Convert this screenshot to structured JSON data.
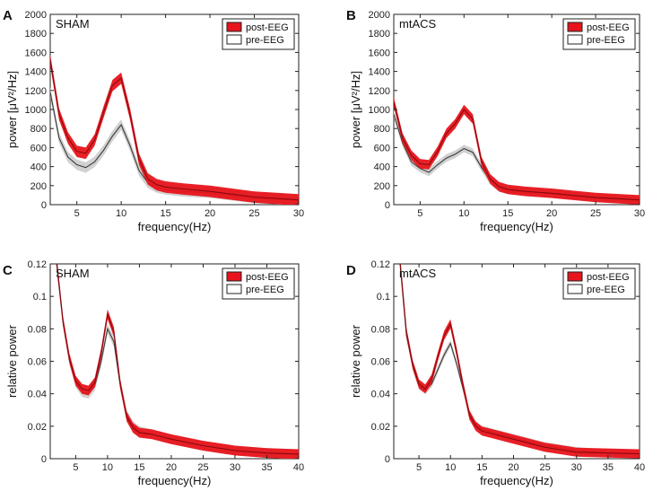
{
  "chart_data": [
    {
      "type": "line",
      "panel_label": "A",
      "title": "SHAM",
      "xlabel": "frequency(Hz)",
      "ylabel": "power [μV²/Hz]",
      "xlim": [
        2,
        30
      ],
      "ylim": [
        0,
        2000
      ],
      "xticks": [
        "5",
        "10",
        "15",
        "20",
        "25",
        "30"
      ],
      "xtick_values": [
        5,
        10,
        15,
        20,
        25,
        30
      ],
      "yticks": [
        "0",
        "200",
        "400",
        "600",
        "800",
        "1000",
        "1200",
        "1400",
        "1600",
        "1800",
        "2000"
      ],
      "ytick_values": [
        0,
        200,
        400,
        600,
        800,
        1000,
        1200,
        1400,
        1600,
        1800,
        2000
      ],
      "legend_position": "top-right",
      "series": [
        {
          "name": "post-EEG",
          "color": "#e8141b",
          "x": [
            2,
            3,
            4,
            5,
            6,
            7,
            8,
            9,
            10,
            11,
            12,
            13,
            14,
            15,
            17,
            20,
            25,
            30
          ],
          "values": [
            1520,
            950,
            700,
            560,
            540,
            680,
            970,
            1250,
            1330,
            950,
            480,
            270,
            210,
            185,
            165,
            140,
            80,
            50
          ],
          "band": 60
        },
        {
          "name": "pre-EEG",
          "color": "#b0b0b0",
          "x": [
            2,
            3,
            4,
            5,
            6,
            7,
            8,
            9,
            10,
            11,
            12,
            13,
            14,
            15,
            17,
            20,
            25,
            30
          ],
          "values": [
            1180,
            700,
            500,
            420,
            390,
            450,
            570,
            720,
            840,
            620,
            360,
            230,
            180,
            160,
            140,
            125,
            70,
            45
          ],
          "band": 55
        }
      ]
    },
    {
      "type": "line",
      "panel_label": "B",
      "title": "mtACS",
      "xlabel": "frequency(Hz)",
      "ylabel": "power [μV²/Hz]",
      "xlim": [
        2,
        30
      ],
      "ylim": [
        0,
        2000
      ],
      "xticks": [
        "5",
        "10",
        "15",
        "20",
        "25",
        "30"
      ],
      "xtick_values": [
        5,
        10,
        15,
        20,
        25,
        30
      ],
      "yticks": [
        "0",
        "200",
        "400",
        "600",
        "800",
        "1000",
        "1200",
        "1400",
        "1600",
        "1800",
        "2000"
      ],
      "ytick_values": [
        0,
        200,
        400,
        600,
        800,
        1000,
        1200,
        1400,
        1600,
        1800,
        2000
      ],
      "legend_position": "top-right",
      "series": [
        {
          "name": "post-EEG",
          "color": "#e8141b",
          "x": [
            2,
            3,
            4,
            5,
            6,
            7,
            8,
            9,
            10,
            11,
            12,
            13,
            14,
            15,
            17,
            20,
            25,
            30
          ],
          "values": [
            1080,
            700,
            520,
            430,
            420,
            560,
            750,
            850,
            1000,
            900,
            450,
            270,
            190,
            160,
            140,
            120,
            75,
            50
          ],
          "band": 50
        },
        {
          "name": "pre-EEG",
          "color": "#b0b0b0",
          "x": [
            2,
            3,
            4,
            5,
            6,
            7,
            8,
            9,
            10,
            11,
            12,
            13,
            14,
            15,
            17,
            20,
            25,
            30
          ],
          "values": [
            950,
            650,
            450,
            380,
            340,
            420,
            490,
            530,
            590,
            550,
            390,
            250,
            175,
            150,
            130,
            115,
            70,
            45
          ],
          "band": 40
        }
      ]
    },
    {
      "type": "line",
      "panel_label": "C",
      "title": "SHAM",
      "xlabel": "frequency(Hz)",
      "ylabel": "relative power",
      "xlim": [
        1,
        40
      ],
      "ylim": [
        0,
        0.12
      ],
      "xticks": [
        "5",
        "10",
        "15",
        "20",
        "25",
        "30",
        "35",
        "40"
      ],
      "xtick_values": [
        5,
        10,
        15,
        20,
        25,
        30,
        35,
        40
      ],
      "yticks": [
        "0",
        "0.02",
        "0.04",
        "0.06",
        "0.08",
        "0.1",
        "0.12"
      ],
      "ytick_values": [
        0,
        0.02,
        0.04,
        0.06,
        0.08,
        0.1,
        0.12
      ],
      "legend_position": "top-right",
      "series": [
        {
          "name": "post-EEG",
          "color": "#e8141b",
          "x": [
            2,
            3,
            4,
            5,
            6,
            7,
            8,
            9,
            10,
            11,
            12,
            13,
            14,
            15,
            17,
            20,
            25,
            30,
            35,
            40
          ],
          "values": [
            0.122,
            0.085,
            0.062,
            0.048,
            0.043,
            0.042,
            0.047,
            0.065,
            0.089,
            0.078,
            0.046,
            0.026,
            0.019,
            0.016,
            0.015,
            0.012,
            0.008,
            0.005,
            0.0035,
            0.0028
          ],
          "band": 0.003
        },
        {
          "name": "pre-EEG",
          "color": "#b0b0b0",
          "x": [
            2,
            3,
            4,
            5,
            6,
            7,
            8,
            9,
            10,
            11,
            12,
            13,
            14,
            15,
            17,
            20,
            25,
            30,
            35,
            40
          ],
          "values": [
            0.12,
            0.084,
            0.061,
            0.047,
            0.041,
            0.04,
            0.045,
            0.06,
            0.08,
            0.072,
            0.045,
            0.027,
            0.02,
            0.017,
            0.015,
            0.012,
            0.008,
            0.005,
            0.0035,
            0.0028
          ],
          "band": 0.003
        }
      ]
    },
    {
      "type": "line",
      "panel_label": "D",
      "title": "mtACS",
      "xlabel": "frequency(Hz)",
      "ylabel": "relative power",
      "xlim": [
        1,
        40
      ],
      "ylim": [
        0,
        0.12
      ],
      "xticks": [
        "5",
        "10",
        "15",
        "20",
        "25",
        "30",
        "35",
        "40"
      ],
      "xtick_values": [
        5,
        10,
        15,
        20,
        25,
        30,
        35,
        40
      ],
      "yticks": [
        "0",
        "0.02",
        "0.04",
        "0.06",
        "0.08",
        "0.1",
        "0.12"
      ],
      "ytick_values": [
        0,
        0.02,
        0.04,
        0.06,
        0.08,
        0.1,
        0.12
      ],
      "legend_position": "top-right",
      "series": [
        {
          "name": "post-EEG",
          "color": "#e8141b",
          "x": [
            2,
            3,
            4,
            5,
            6,
            7,
            8,
            9,
            10,
            11,
            12,
            13,
            14,
            15,
            17,
            20,
            25,
            30,
            35,
            40
          ],
          "values": [
            0.122,
            0.078,
            0.058,
            0.046,
            0.043,
            0.049,
            0.063,
            0.076,
            0.083,
            0.065,
            0.045,
            0.027,
            0.02,
            0.017,
            0.015,
            0.012,
            0.007,
            0.004,
            0.0035,
            0.003
          ],
          "band": 0.0028
        },
        {
          "name": "pre-EEG",
          "color": "#b0b0b0",
          "x": [
            2,
            3,
            4,
            5,
            6,
            7,
            8,
            9,
            10,
            11,
            12,
            13,
            14,
            15,
            17,
            20,
            25,
            30,
            35,
            40
          ],
          "values": [
            0.12,
            0.076,
            0.057,
            0.045,
            0.042,
            0.046,
            0.055,
            0.064,
            0.071,
            0.058,
            0.043,
            0.028,
            0.021,
            0.018,
            0.016,
            0.013,
            0.008,
            0.005,
            0.0035,
            0.003
          ],
          "band": 0.0022
        }
      ]
    }
  ]
}
